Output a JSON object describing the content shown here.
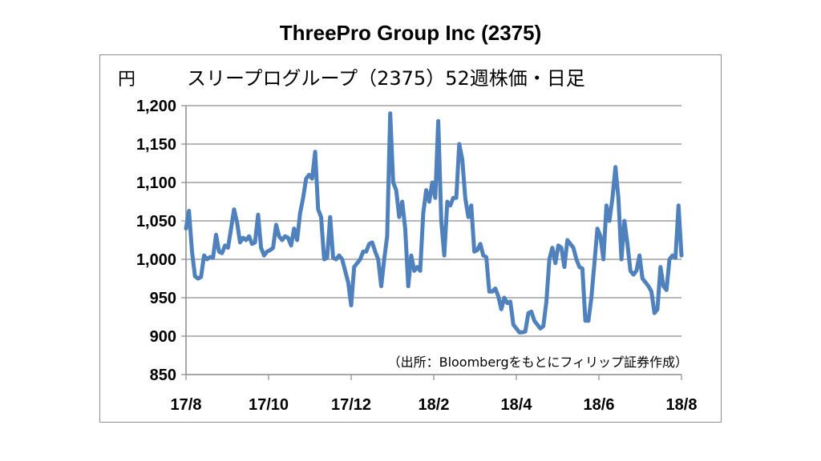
{
  "chart_data": {
    "type": "line",
    "title": "ThreePro Group Inc (2375)",
    "subtitle": "スリープログループ（2375）52週株価・日足",
    "ylabel": "円",
    "source_note": "（出所：Bloombergをもとにフィリップ証券作成）",
    "ylim": [
      850,
      1200
    ],
    "y_ticks": [
      "1,200",
      "1,150",
      "1,100",
      "1,050",
      "1,000",
      "950",
      "900",
      "850"
    ],
    "y_tick_values": [
      1200,
      1150,
      1100,
      1050,
      1000,
      950,
      900,
      850
    ],
    "x_ticks": [
      "17/8",
      "17/10",
      "17/12",
      "18/2",
      "18/4",
      "18/6",
      "18/8"
    ],
    "grid": true,
    "line_color": "#4f81bd",
    "series": [
      {
        "values": [
          1040,
          1063,
          1010,
          978,
          975,
          977,
          1005,
          1000,
          1003,
          1002,
          1032,
          1010,
          1008,
          1018,
          1015,
          1040,
          1065,
          1048,
          1022,
          1028,
          1025,
          1030,
          1020,
          1022,
          1058,
          1015,
          1005,
          1010,
          1012,
          1015,
          1045,
          1030,
          1025,
          1030,
          1028,
          1018,
          1040,
          1025,
          1060,
          1080,
          1105,
          1110,
          1105,
          1140,
          1065,
          1055,
          1000,
          1002,
          1055,
          1002,
          1000,
          1005,
          1000,
          985,
          970,
          940,
          990,
          995,
          1000,
          1010,
          1010,
          1020,
          1022,
          1010,
          1000,
          965,
          1000,
          1030,
          1190,
          1100,
          1090,
          1055,
          1075,
          1040,
          965,
          1005,
          985,
          990,
          985,
          1060,
          1090,
          1075,
          1100,
          1080,
          1180,
          1050,
          1005,
          1075,
          1070,
          1080,
          1080,
          1150,
          1130,
          1080,
          1055,
          1070,
          1010,
          1012,
          1020,
          1005,
          1003,
          958,
          958,
          962,
          952,
          935,
          950,
          943,
          945,
          915,
          910,
          905,
          905,
          906,
          930,
          932,
          920,
          915,
          910,
          913,
          945,
          1000,
          1015,
          995,
          1018,
          1015,
          990,
          1025,
          1020,
          1015,
          1000,
          990,
          988,
          920,
          920,
          950,
          995,
          1040,
          1030,
          1000,
          1070,
          1050,
          1080,
          1120,
          1080,
          1000,
          1050,
          1020,
          985,
          980,
          985,
          1005,
          975,
          970,
          965,
          958,
          930,
          935,
          990,
          965,
          960,
          1000,
          1005,
          1002,
          1070,
          1005
        ]
      }
    ]
  }
}
